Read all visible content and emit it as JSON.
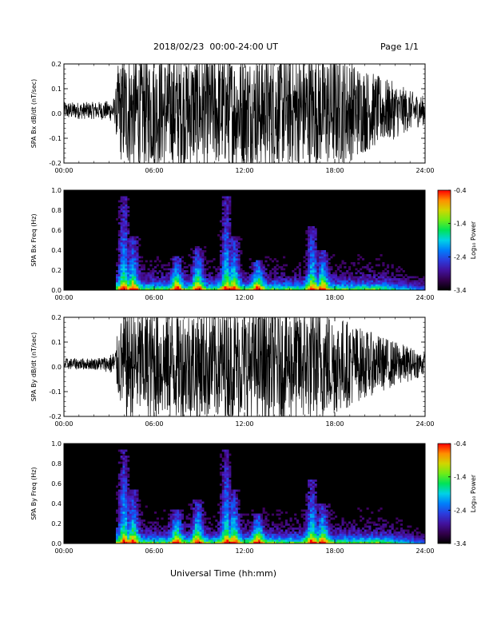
{
  "header": {
    "title": "2018/02/23  00:00-24:00 UT",
    "page": "Page 1/1"
  },
  "xlabel": "Universal Time (hh:mm)",
  "chart_data": [
    {
      "type": "line",
      "ylabel": "SPA Bx dB/dt (nT/sec)",
      "xlim": [
        0,
        24
      ],
      "ylim": [
        -0.2,
        0.2
      ],
      "xticks": [
        "00:00",
        "06:00",
        "12:00",
        "18:00",
        "24:00"
      ],
      "yticks": [
        "-0.2",
        "-0.1",
        "0.0",
        "0.1",
        "0.2"
      ],
      "series": [
        {
          "x": [
            0,
            1,
            2,
            3,
            3.4,
            3.6,
            4,
            4.5,
            5,
            6,
            7,
            8,
            9,
            10,
            11,
            12,
            13,
            14,
            15,
            16,
            17,
            18,
            19,
            20,
            21,
            22,
            23,
            24
          ],
          "amplitude": [
            0.03,
            0.03,
            0.03,
            0.035,
            0.05,
            0.16,
            0.2,
            0.2,
            0.2,
            0.2,
            0.2,
            0.2,
            0.2,
            0.2,
            0.2,
            0.2,
            0.2,
            0.2,
            0.2,
            0.2,
            0.2,
            0.2,
            0.18,
            0.15,
            0.12,
            0.1,
            0.07,
            0.05
          ]
        }
      ]
    },
    {
      "type": "heatmap",
      "ylabel": "SPA Bx Freq (Hz)",
      "xlim": [
        0,
        24
      ],
      "ylim": [
        0,
        1
      ],
      "xticks": [
        "00:00",
        "06:00",
        "12:00",
        "18:00",
        "24:00"
      ],
      "yticks": [
        "0.0",
        "0.2",
        "0.4",
        "0.6",
        "0.8",
        "1.0"
      ],
      "colorbar": {
        "label": "Log₁₀ Power",
        "ticks": [
          "-0.4",
          "-1.4",
          "-2.4",
          "-3.4"
        ],
        "range": [
          -3.4,
          -0.4
        ]
      },
      "bursts": [
        {
          "t": 4.0,
          "ext": 0.95
        },
        {
          "t": 4.6,
          "ext": 0.55
        },
        {
          "t": 7.5,
          "ext": 0.35
        },
        {
          "t": 8.9,
          "ext": 0.45
        },
        {
          "t": 10.8,
          "ext": 0.95
        },
        {
          "t": 11.3,
          "ext": 0.55
        },
        {
          "t": 12.9,
          "ext": 0.3
        },
        {
          "t": 16.5,
          "ext": 0.65
        },
        {
          "t": 17.2,
          "ext": 0.4
        }
      ]
    },
    {
      "type": "line",
      "ylabel": "SPA By dB/dt (nT/sec)",
      "xlim": [
        0,
        24
      ],
      "ylim": [
        -0.2,
        0.2
      ],
      "xticks": [
        "00:00",
        "06:00",
        "12:00",
        "18:00",
        "24:00"
      ],
      "yticks": [
        "-0.2",
        "-0.1",
        "0.0",
        "0.1",
        "0.2"
      ],
      "series": [
        {
          "x": [
            0,
            1,
            2,
            3,
            3.4,
            3.6,
            4,
            4.5,
            5,
            6,
            7,
            8,
            9,
            10,
            11,
            12,
            13,
            14,
            15,
            16,
            17,
            18,
            19,
            20,
            21,
            22,
            23,
            24
          ],
          "amplitude": [
            0.02,
            0.02,
            0.02,
            0.03,
            0.05,
            0.12,
            0.2,
            0.2,
            0.2,
            0.2,
            0.2,
            0.2,
            0.2,
            0.2,
            0.2,
            0.2,
            0.2,
            0.2,
            0.2,
            0.2,
            0.2,
            0.18,
            0.15,
            0.12,
            0.1,
            0.08,
            0.06,
            0.04
          ]
        }
      ]
    },
    {
      "type": "heatmap",
      "ylabel": "SPA By Freq (Hz)",
      "xlim": [
        0,
        24
      ],
      "ylim": [
        0,
        1
      ],
      "xticks": [
        "00:00",
        "06:00",
        "12:00",
        "18:00",
        "24:00"
      ],
      "yticks": [
        "0.0",
        "0.2",
        "0.4",
        "0.6",
        "0.8",
        "1.0"
      ],
      "colorbar": {
        "label": "Log₁₀ Power",
        "ticks": [
          "-0.4",
          "-1.4",
          "-2.4",
          "-3.4"
        ],
        "range": [
          -3.4,
          -0.4
        ]
      },
      "bursts": [
        {
          "t": 4.0,
          "ext": 0.95
        },
        {
          "t": 4.6,
          "ext": 0.55
        },
        {
          "t": 7.5,
          "ext": 0.35
        },
        {
          "t": 8.9,
          "ext": 0.45
        },
        {
          "t": 10.8,
          "ext": 0.95
        },
        {
          "t": 11.3,
          "ext": 0.55
        },
        {
          "t": 12.9,
          "ext": 0.3
        },
        {
          "t": 16.5,
          "ext": 0.65
        },
        {
          "t": 17.2,
          "ext": 0.4
        }
      ]
    }
  ]
}
